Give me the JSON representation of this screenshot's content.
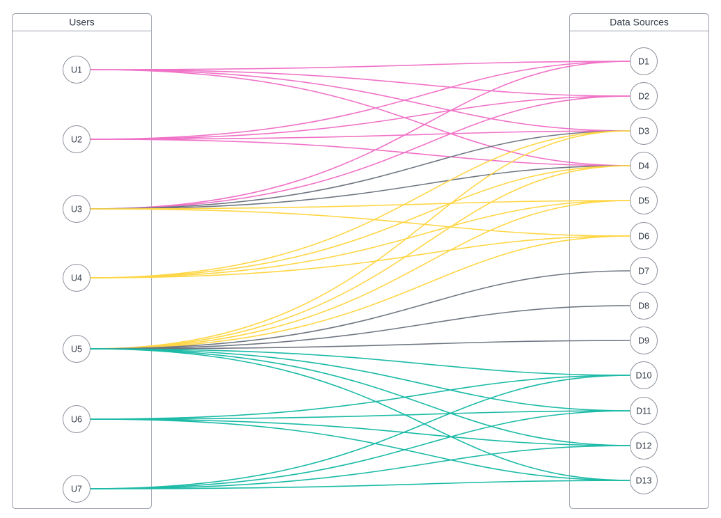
{
  "diagram": {
    "type": "bipartite-access-map",
    "left_panel": {
      "title": "Users",
      "nodes": [
        "U1",
        "U2",
        "U3",
        "U4",
        "U5",
        "U6",
        "U7"
      ]
    },
    "right_panel": {
      "title": "Data Sources",
      "nodes": [
        "D1",
        "D2",
        "D3",
        "D4",
        "D5",
        "D6",
        "D7",
        "D8",
        "D9",
        "D10",
        "D11",
        "D12",
        "D13"
      ]
    },
    "edge_colors": {
      "pink": "#f072c7",
      "gray": "#707782",
      "yellow": "#ffd645",
      "teal": "#1abaa6"
    },
    "edges": [
      {
        "from": "U1",
        "to": "D1",
        "group": "pink"
      },
      {
        "from": "U1",
        "to": "D2",
        "group": "pink"
      },
      {
        "from": "U1",
        "to": "D3",
        "group": "pink"
      },
      {
        "from": "U1",
        "to": "D4",
        "group": "pink"
      },
      {
        "from": "U2",
        "to": "D1",
        "group": "pink"
      },
      {
        "from": "U2",
        "to": "D2",
        "group": "pink"
      },
      {
        "from": "U2",
        "to": "D3",
        "group": "pink"
      },
      {
        "from": "U2",
        "to": "D4",
        "group": "pink"
      },
      {
        "from": "U3",
        "to": "D1",
        "group": "pink"
      },
      {
        "from": "U3",
        "to": "D2",
        "group": "pink"
      },
      {
        "from": "U3",
        "to": "D3",
        "group": "gray"
      },
      {
        "from": "U3",
        "to": "D4",
        "group": "gray"
      },
      {
        "from": "U3",
        "to": "D5",
        "group": "yellow"
      },
      {
        "from": "U3",
        "to": "D6",
        "group": "yellow"
      },
      {
        "from": "U4",
        "to": "D3",
        "group": "yellow"
      },
      {
        "from": "U4",
        "to": "D4",
        "group": "yellow"
      },
      {
        "from": "U4",
        "to": "D5",
        "group": "yellow"
      },
      {
        "from": "U4",
        "to": "D6",
        "group": "yellow"
      },
      {
        "from": "U5",
        "to": "D3",
        "group": "yellow"
      },
      {
        "from": "U5",
        "to": "D4",
        "group": "yellow"
      },
      {
        "from": "U5",
        "to": "D5",
        "group": "yellow"
      },
      {
        "from": "U5",
        "to": "D6",
        "group": "yellow"
      },
      {
        "from": "U5",
        "to": "D7",
        "group": "gray"
      },
      {
        "from": "U5",
        "to": "D8",
        "group": "gray"
      },
      {
        "from": "U5",
        "to": "D9",
        "group": "gray"
      },
      {
        "from": "U5",
        "to": "D10",
        "group": "teal"
      },
      {
        "from": "U5",
        "to": "D11",
        "group": "teal"
      },
      {
        "from": "U5",
        "to": "D12",
        "group": "teal"
      },
      {
        "from": "U5",
        "to": "D13",
        "group": "teal"
      },
      {
        "from": "U6",
        "to": "D10",
        "group": "teal"
      },
      {
        "from": "U6",
        "to": "D11",
        "group": "teal"
      },
      {
        "from": "U6",
        "to": "D12",
        "group": "teal"
      },
      {
        "from": "U6",
        "to": "D13",
        "group": "teal"
      },
      {
        "from": "U7",
        "to": "D10",
        "group": "teal"
      },
      {
        "from": "U7",
        "to": "D11",
        "group": "teal"
      },
      {
        "from": "U7",
        "to": "D12",
        "group": "teal"
      },
      {
        "from": "U7",
        "to": "D13",
        "group": "teal"
      }
    ]
  }
}
